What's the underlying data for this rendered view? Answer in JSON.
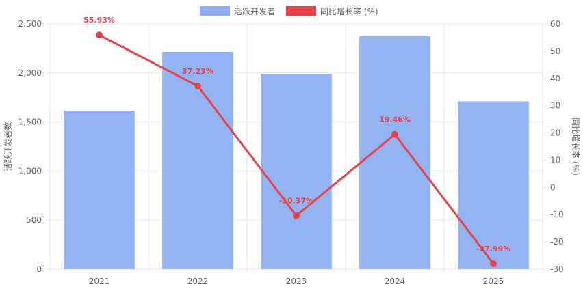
{
  "chart_data": {
    "type": "bar",
    "categories": [
      "2021",
      "2022",
      "2023",
      "2024",
      "2025"
    ],
    "series": [
      {
        "name": "活跃开发者",
        "type": "bar",
        "axis": "left",
        "color": "#91b1f2",
        "values": [
          1615,
          2215,
          1990,
          2375,
          1710
        ]
      },
      {
        "name": "同比增长率 (%)",
        "type": "line",
        "axis": "right",
        "color": "#e8424a",
        "values": [
          55.93,
          37.23,
          -10.37,
          19.46,
          -27.99
        ],
        "labels": [
          "55.93%",
          "37.23%",
          "-10.37%",
          "19.46%",
          "-27.99%"
        ]
      }
    ],
    "ylabel": "活跃开发者数",
    "y2label": "同比增长率 (%)",
    "ylim": [
      0,
      2500
    ],
    "y2lim": [
      -30,
      60
    ],
    "yticks": [
      0,
      500,
      1000,
      1500,
      2000,
      2500
    ],
    "ytick_labels": [
      "0",
      "500",
      "1,000",
      "1,500",
      "2,000",
      "2,500"
    ],
    "y2ticks": [
      -30,
      -20,
      -10,
      0,
      10,
      20,
      30,
      40,
      50,
      60
    ],
    "y2tick_labels": [
      "-30",
      "-20",
      "-10",
      "0",
      "10",
      "20",
      "30",
      "40",
      "50",
      "60"
    ],
    "grid": true,
    "legend": "top-center"
  }
}
